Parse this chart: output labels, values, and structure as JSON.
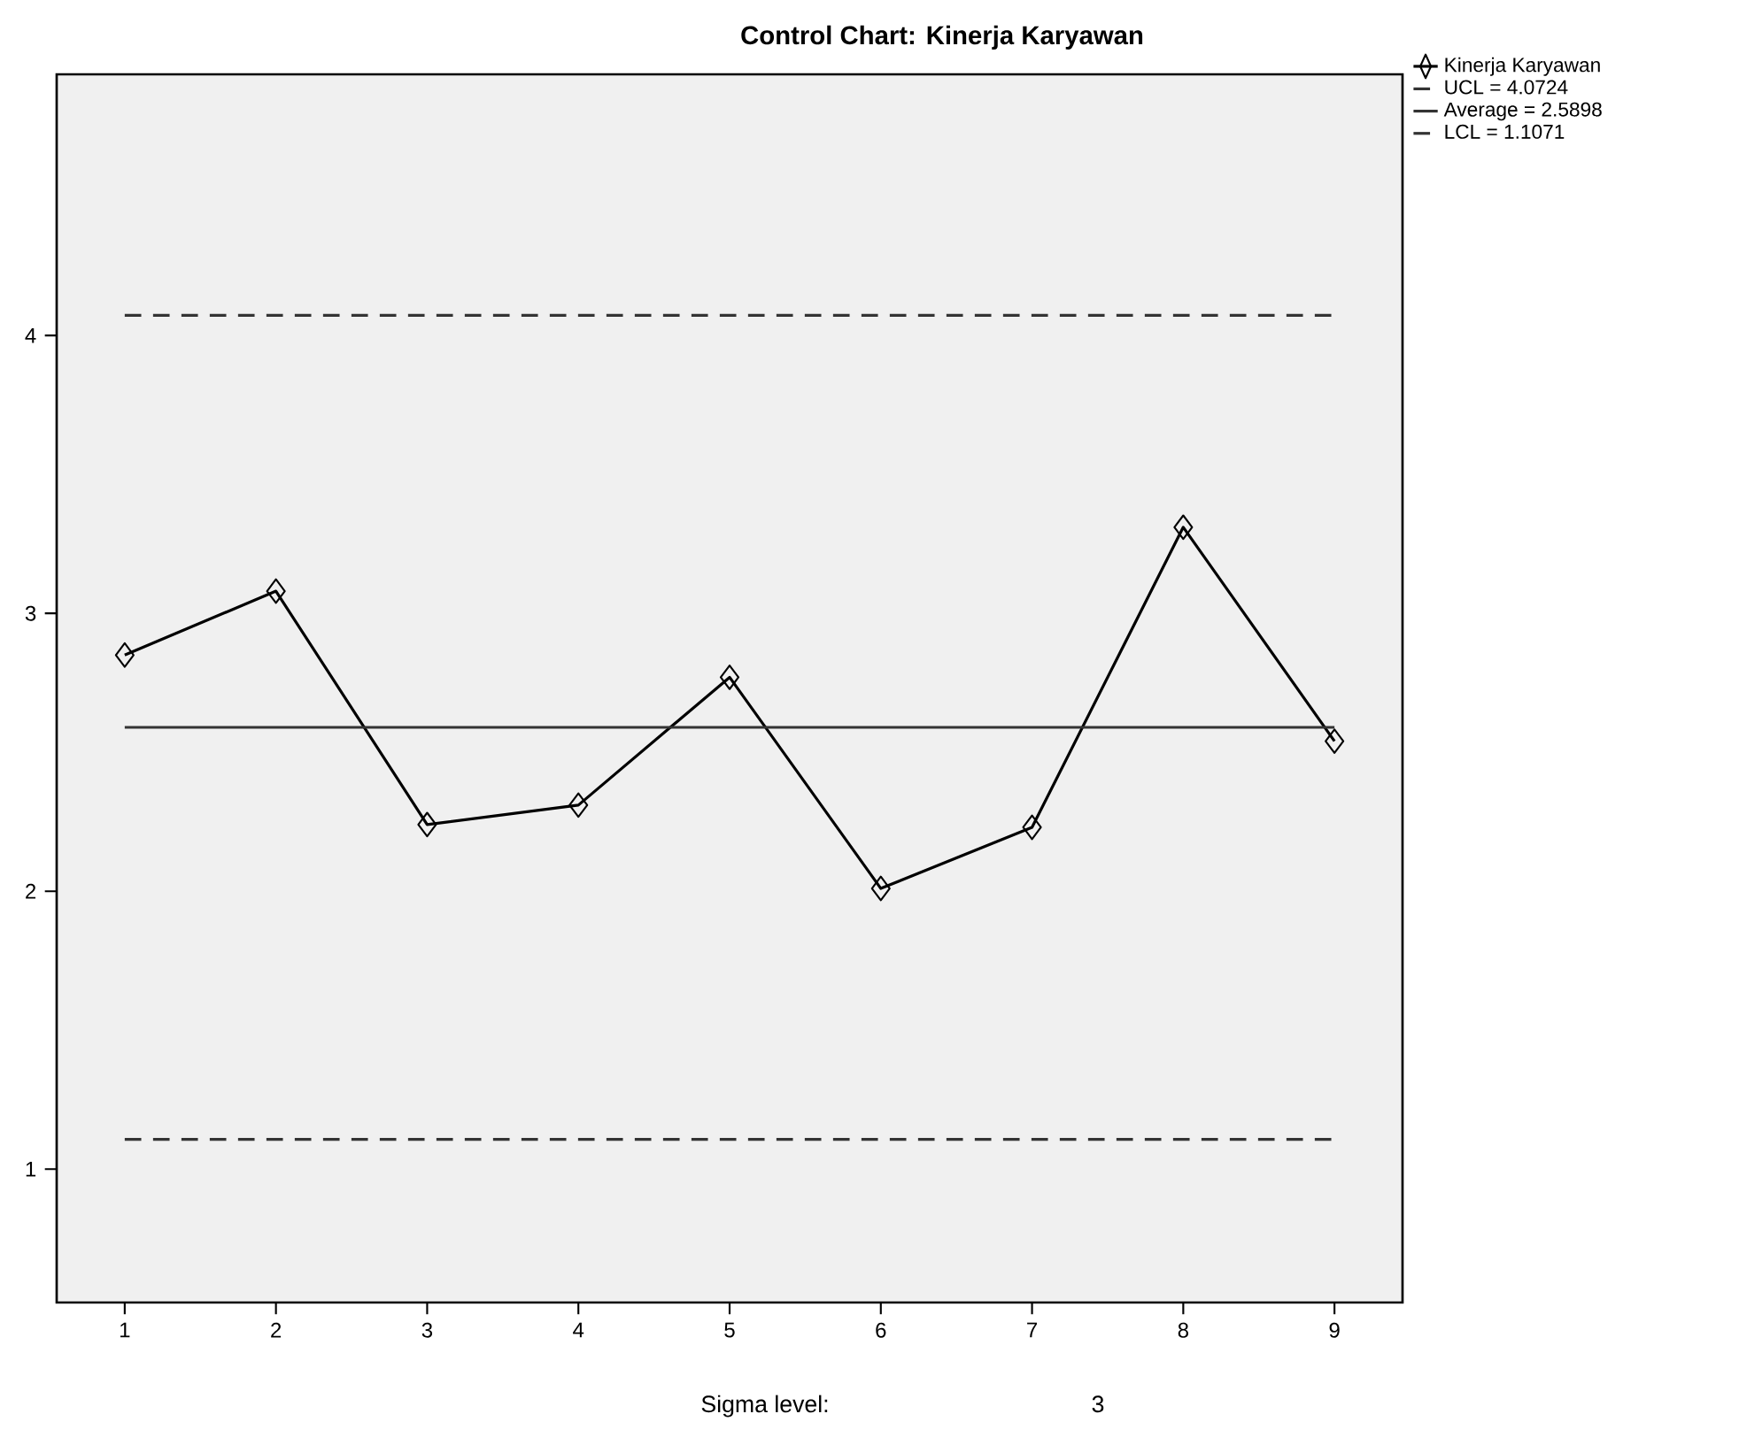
{
  "chart_data": {
    "type": "line",
    "title": "Control Chart: Kinerja Karyawan",
    "x": [
      1,
      2,
      3,
      4,
      5,
      6,
      7,
      8,
      9
    ],
    "series": [
      {
        "name": "Kinerja Karyawan",
        "color": "#000000",
        "values": [
          2.85,
          3.08,
          2.24,
          2.31,
          2.77,
          2.01,
          2.23,
          3.31,
          2.54
        ],
        "marker": "diamond",
        "line_style": "solid"
      },
      {
        "name": "UCL = 4.0724",
        "color": "#333333",
        "values": [
          4.0724,
          4.0724,
          4.0724,
          4.0724,
          4.0724,
          4.0724,
          4.0724,
          4.0724,
          4.0724
        ],
        "marker": "none",
        "line_style": "dashed"
      },
      {
        "name": "Average = 2.5898",
        "color": "#333333",
        "values": [
          2.5898,
          2.5898,
          2.5898,
          2.5898,
          2.5898,
          2.5898,
          2.5898,
          2.5898,
          2.5898
        ],
        "marker": "none",
        "line_style": "solid"
      },
      {
        "name": "LCL = 1.1071",
        "color": "#333333",
        "values": [
          1.1071,
          1.1071,
          1.1071,
          1.1071,
          1.1071,
          1.1071,
          1.1071,
          1.1071,
          1.1071
        ],
        "marker": "none",
        "line_style": "dashed"
      }
    ],
    "xlim": [
      0.55,
      9.45
    ],
    "xticks": [
      1,
      2,
      3,
      4,
      5,
      6,
      7,
      8,
      9
    ],
    "ylim": [
      0.52,
      4.94
    ],
    "yticks": [
      1,
      2,
      3,
      4
    ],
    "legend": "top right",
    "annotations": [
      "Sigma level:",
      "3"
    ]
  }
}
